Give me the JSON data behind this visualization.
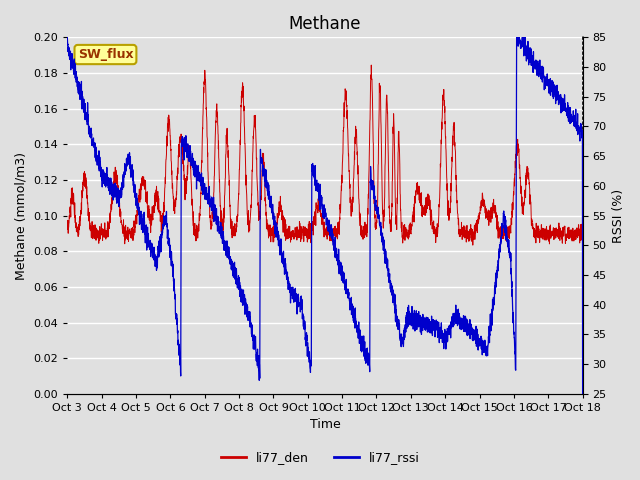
{
  "title": "Methane",
  "ylabel_left": "Methane (mmol/m3)",
  "ylabel_right": "RSSI (%)",
  "xlabel": "Time",
  "ylim_left": [
    0.0,
    0.2
  ],
  "ylim_right": [
    25,
    85
  ],
  "yticks_left": [
    0.0,
    0.02,
    0.04,
    0.06,
    0.08,
    0.1,
    0.12,
    0.14,
    0.16,
    0.18,
    0.2
  ],
  "yticks_right": [
    25,
    30,
    35,
    40,
    45,
    50,
    55,
    60,
    65,
    70,
    75,
    80,
    85
  ],
  "xtick_labels": [
    "Oct 3",
    "Oct 4",
    "Oct 5",
    "Oct 6",
    "Oct 7",
    "Oct 8",
    "Oct 9",
    "Oct 10",
    "Oct 11",
    "Oct 12",
    "Oct 13",
    "Oct 14",
    "Oct 15",
    "Oct 16",
    "Oct 17",
    "Oct 18"
  ],
  "bg_color": "#e0e0e0",
  "plot_bg_color": "#e0e0e0",
  "line_color_red": "#cc0000",
  "line_color_blue": "#0000cc",
  "legend_red": "li77_den",
  "legend_blue": "li77_rssi",
  "sw_flux_label": "SW_flux",
  "sw_flux_bg": "#ffff99",
  "sw_flux_border": "#b8a000",
  "sw_flux_text_color": "#993300",
  "grid_color": "#ffffff",
  "title_fontsize": 12,
  "axis_label_fontsize": 9,
  "tick_fontsize": 8
}
